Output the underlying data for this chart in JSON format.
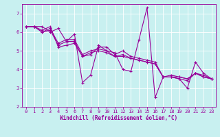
{
  "xlabel": "Windchill (Refroidissement éolien,°C)",
  "background_color": "#c8f0f0",
  "line_color": "#990099",
  "grid_color": "#ffffff",
  "series": [
    [
      6.3,
      6.3,
      6.3,
      6.0,
      6.2,
      5.5,
      5.9,
      3.3,
      3.7,
      5.3,
      5.0,
      4.9,
      4.0,
      3.9,
      5.6,
      7.3,
      2.5,
      3.6,
      3.6,
      3.5,
      3.0,
      4.4,
      3.8,
      3.5
    ],
    [
      6.3,
      6.3,
      6.1,
      6.3,
      5.2,
      5.3,
      5.4,
      4.7,
      4.8,
      5.2,
      5.2,
      4.8,
      5.0,
      4.7,
      4.6,
      4.5,
      4.4,
      3.6,
      3.7,
      3.6,
      3.5,
      3.8,
      3.7,
      3.5
    ],
    [
      6.3,
      6.3,
      6.0,
      6.2,
      5.4,
      5.6,
      5.6,
      4.8,
      5.0,
      5.1,
      5.0,
      4.7,
      4.8,
      4.6,
      4.5,
      4.4,
      4.3,
      3.6,
      3.6,
      3.6,
      3.5,
      3.8,
      3.6,
      3.5
    ],
    [
      6.3,
      6.3,
      6.0,
      6.1,
      5.3,
      5.5,
      5.5,
      4.7,
      4.9,
      5.0,
      4.9,
      4.7,
      4.7,
      4.6,
      4.5,
      4.4,
      4.3,
      3.6,
      3.6,
      3.5,
      3.4,
      3.8,
      3.6,
      3.5
    ]
  ],
  "xlim": [
    -0.5,
    23.5
  ],
  "ylim": [
    2,
    7.5
  ],
  "yticks": [
    2,
    3,
    4,
    5,
    6,
    7
  ],
  "xticks": [
    0,
    1,
    2,
    3,
    4,
    5,
    6,
    7,
    8,
    9,
    10,
    11,
    12,
    13,
    14,
    15,
    16,
    17,
    18,
    19,
    20,
    21,
    22,
    23
  ],
  "marker": "+",
  "markersize": 3,
  "linewidth": 0.8,
  "tick_fontsize": 5,
  "xlabel_fontsize": 5.5
}
